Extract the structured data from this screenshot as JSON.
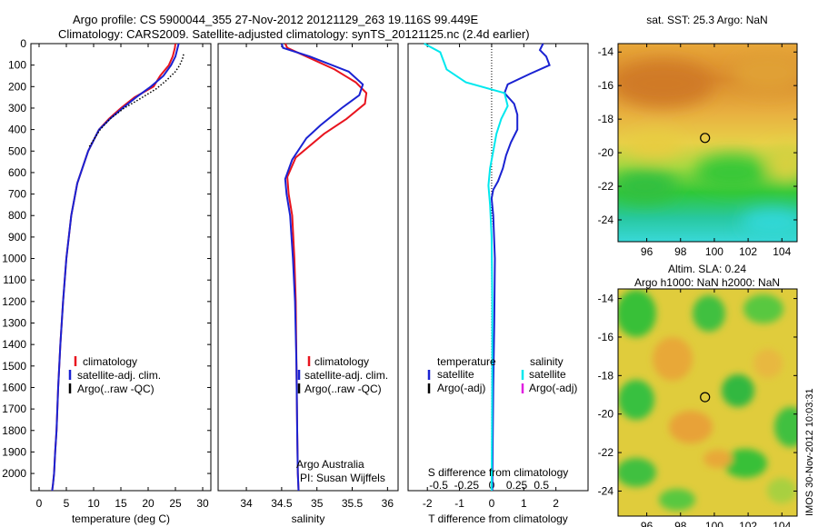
{
  "header": {
    "line1": "Argo profile: CS 5900044_355 27-Nov-2012 20121129_263 19.116S 99.449E",
    "line2": "Climatology: CARS2009. Satellite-adjusted climatology: synTS_20121125.nc (2.4d earlier)"
  },
  "side_stamp": "IMOS 30-Nov-2012 10:03:31",
  "colors": {
    "climatology": "#e8141e",
    "satellite": "#1a22d2",
    "argo": "#000000",
    "sal_sat": "#00e8ee",
    "sal_argo": "#e020e0"
  },
  "chart_data": [
    {
      "type": "line",
      "xlabel": "temperature (deg C)",
      "xlim": [
        -1.5,
        31.5
      ],
      "xticks": [
        0,
        5,
        10,
        15,
        20,
        25,
        30
      ],
      "ylim": [
        0,
        2080
      ],
      "yticks": [
        0,
        100,
        200,
        300,
        400,
        500,
        600,
        700,
        800,
        900,
        1000,
        1100,
        1200,
        1300,
        1400,
        1500,
        1600,
        1700,
        1800,
        1900,
        2000
      ],
      "legend": {
        "placement": "bottom-left",
        "entries": [
          "climatology",
          "satellite-adj. clim.",
          "Argo(..raw -QC)"
        ]
      },
      "series": [
        {
          "name": "climatology",
          "color": "#e8141e",
          "x": [
            25.0,
            24.9,
            24.5,
            23.8,
            22.2,
            21.0,
            17.5,
            15.0,
            12.8,
            11.0,
            9.0,
            7.0,
            5.9,
            5.0,
            4.4,
            3.9,
            3.5,
            3.2,
            2.95,
            2.75,
            2.55,
            2.4
          ],
          "y": [
            0,
            20,
            60,
            100,
            150,
            200,
            250,
            300,
            350,
            400,
            500,
            650,
            800,
            1000,
            1200,
            1400,
            1600,
            1800,
            1900,
            2000,
            2050,
            2080
          ]
        },
        {
          "name": "satellite-adj. clim.",
          "color": "#1a22d2",
          "x": [
            25.6,
            25.4,
            25.0,
            24.2,
            22.8,
            20.5,
            17.8,
            15.3,
            13.0,
            11.0,
            9.0,
            7.0,
            5.9,
            5.0,
            4.4,
            3.9,
            3.5,
            3.2,
            2.95,
            2.75,
            2.55,
            2.4
          ],
          "y": [
            0,
            20,
            60,
            100,
            150,
            200,
            250,
            300,
            350,
            400,
            500,
            650,
            800,
            1000,
            1200,
            1400,
            1600,
            1800,
            1900,
            2000,
            2050,
            2080
          ]
        },
        {
          "name": "Argo(..raw -QC)",
          "color": "#000000",
          "dashed": true,
          "x": [
            26.5,
            26.3,
            25.8,
            25.0,
            23.4,
            21.5,
            18.3,
            15.6,
            13.0,
            11.2,
            9.2
          ],
          "y": [
            50,
            70,
            100,
            130,
            170,
            210,
            260,
            300,
            350,
            400,
            480
          ]
        }
      ]
    },
    {
      "type": "line",
      "xlabel": "salinity",
      "xlim": [
        33.6,
        36.15
      ],
      "xticks": [
        34,
        34.5,
        35,
        35.5,
        36
      ],
      "ylim": [
        0,
        2080
      ],
      "legend": {
        "placement": "bottom-left",
        "entries": [
          "climatology",
          "satellite-adj. clim.",
          "Argo(..raw -QC)"
        ]
      },
      "annotation": [
        "Argo Australia",
        "PI: Susan Wijffels"
      ],
      "series": [
        {
          "name": "climatology",
          "color": "#e8141e",
          "x": [
            34.55,
            34.58,
            34.85,
            35.25,
            35.55,
            35.7,
            35.68,
            35.42,
            35.1,
            34.7,
            34.58,
            34.6,
            34.65,
            34.68,
            34.7,
            34.71,
            34.72,
            34.73,
            34.74
          ],
          "y": [
            0,
            20,
            60,
            120,
            180,
            230,
            280,
            350,
            420,
            530,
            620,
            700,
            800,
            1000,
            1200,
            1500,
            1800,
            2000,
            2080
          ]
        },
        {
          "name": "satellite-adj. clim.",
          "color": "#1a22d2",
          "x": [
            34.5,
            34.52,
            34.9,
            35.45,
            35.65,
            35.6,
            35.35,
            35.05,
            34.85,
            34.65,
            34.55,
            34.57,
            34.62,
            34.66,
            34.69,
            34.71,
            34.72,
            34.73,
            34.74
          ],
          "y": [
            0,
            20,
            60,
            130,
            190,
            240,
            300,
            380,
            440,
            540,
            630,
            700,
            800,
            1000,
            1200,
            1500,
            1800,
            2000,
            2080
          ]
        }
      ]
    },
    {
      "type": "line",
      "xlabel": "T difference from climatology",
      "top_axis_label": "S difference from climatology",
      "xlim": [
        -2.6,
        3.0
      ],
      "xticks": [
        -2,
        -1,
        0,
        1,
        2
      ],
      "top_ticks": {
        "labels": [
          "-0.5",
          "-0.25",
          "0",
          "0.25",
          "0.5"
        ],
        "positions": [
          -1.65,
          -0.78,
          0.0,
          0.78,
          1.55
        ]
      },
      "ylim": [
        0,
        2080
      ],
      "legend": {
        "placement": "bottom",
        "temperature_title": "temperature",
        "salinity_title": "salinity",
        "entries": [
          "satellite",
          "Argo(-adj)",
          "satellite",
          "Argo(-adj)"
        ]
      },
      "series": [
        {
          "name": "satellite",
          "color": "#1a22d2",
          "x": [
            1.6,
            1.5,
            1.7,
            1.8,
            1.2,
            0.5,
            0.4,
            0.7,
            0.8,
            0.8,
            0.6,
            0.45,
            0.35,
            0.2,
            0.05,
            0.0,
            0.05,
            0.1,
            0.08,
            0.05,
            0.03,
            0.02
          ],
          "y": [
            0,
            30,
            60,
            100,
            140,
            190,
            230,
            280,
            330,
            400,
            460,
            520,
            580,
            640,
            680,
            720,
            800,
            1000,
            1300,
            1600,
            1900,
            2080
          ]
        },
        {
          "name": "salinity satellite",
          "color": "#00e8ee",
          "x": [
            -2.1,
            -1.6,
            -1.5,
            -1.4,
            -0.8,
            0.4,
            0.5,
            0.3,
            0.15,
            0.05,
            -0.05,
            -0.1,
            -0.05,
            0.0,
            0.02,
            0.02,
            0.01,
            0.0
          ],
          "y": [
            0,
            40,
            80,
            120,
            180,
            230,
            290,
            350,
            420,
            500,
            580,
            660,
            750,
            900,
            1200,
            1500,
            1800,
            2080
          ]
        }
      ]
    },
    {
      "type": "heatmap",
      "title": "sat. SST: 25.3 Argo: NaN",
      "xlim": [
        94.3,
        104.9
      ],
      "ylim": [
        -25.3,
        -13.5
      ],
      "xticks": [
        96,
        98,
        100,
        102,
        104
      ],
      "yticks": [
        -14,
        -16,
        -18,
        -20,
        -22,
        -24
      ],
      "marker": [
        99.45,
        -19.12
      ]
    },
    {
      "type": "heatmap",
      "title": "Altim. SLA: 0.24",
      "subtitle": "Argo h1000: NaN h2000: NaN",
      "xlim": [
        94.3,
        104.9
      ],
      "ylim": [
        -25.3,
        -13.5
      ],
      "xticks": [
        96,
        98,
        100,
        102,
        104
      ],
      "yticks": [
        -14,
        -16,
        -18,
        -20,
        -22,
        -24
      ],
      "marker": [
        99.45,
        -19.12
      ]
    }
  ]
}
